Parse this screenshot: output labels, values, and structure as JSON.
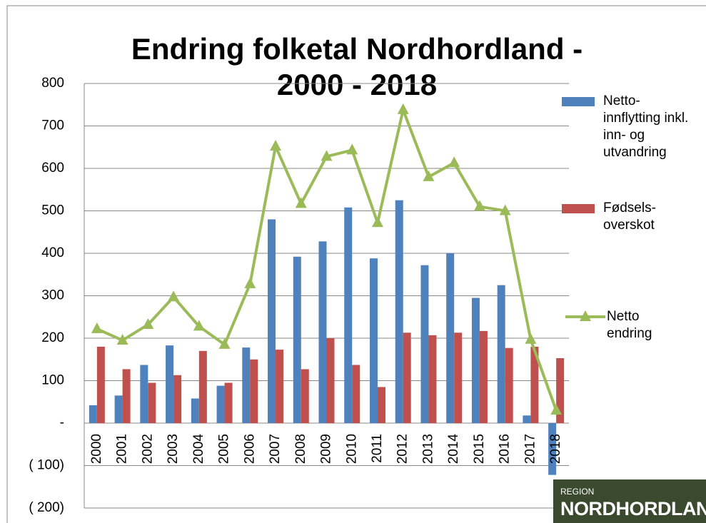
{
  "chart_data": {
    "type": "bar_line",
    "title": [
      "Endring folketal Nordhordland -",
      "2000 - 2018"
    ],
    "categories": [
      "2000",
      "2001",
      "2002",
      "2003",
      "2004",
      "2005",
      "2006",
      "2007",
      "2008",
      "2009",
      "2010",
      "2011",
      "2012",
      "2013",
      "2014",
      "2015",
      "2016",
      "2017",
      "2018"
    ],
    "series": [
      {
        "name": "Netto-innflytting inkl. inn- og utvandring",
        "color": "#4f81bd",
        "kind": "bar",
        "values": [
          42,
          65,
          137,
          183,
          58,
          88,
          178,
          480,
          392,
          428,
          508,
          388,
          525,
          372,
          400,
          295,
          325,
          18,
          -122
        ]
      },
      {
        "name": "Fødsels-overskot",
        "color": "#c0504d",
        "kind": "bar",
        "values": [
          180,
          127,
          95,
          113,
          170,
          95,
          150,
          173,
          127,
          200,
          137,
          85,
          213,
          207,
          213,
          217,
          177,
          180,
          153
        ]
      },
      {
        "name": "Netto endring",
        "color": "#9bbb59",
        "kind": "line",
        "values": [
          222,
          195,
          232,
          297,
          228,
          185,
          328,
          652,
          517,
          628,
          643,
          472,
          738,
          580,
          613,
          510,
          500,
          197,
          30
        ]
      }
    ],
    "ylim": [
      -200,
      800
    ],
    "yticks": [
      {
        "value": -200,
        "label": "( 200)"
      },
      {
        "value": -100,
        "label": "( 100)"
      },
      {
        "value": 0,
        "label": "-"
      },
      100,
      200,
      300,
      400,
      500,
      600,
      700,
      800
    ],
    "grid": true,
    "legend": "right"
  },
  "logo": {
    "top": "REGION",
    "bottom": "NORDHORDLAND"
  }
}
